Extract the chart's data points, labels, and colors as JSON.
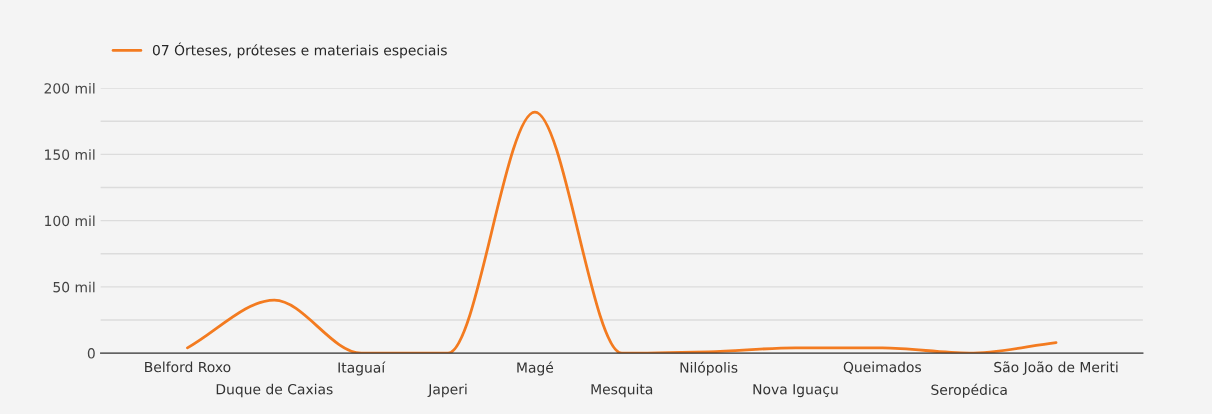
{
  "chart_data": {
    "type": "line",
    "categories": [
      "Belford Roxo",
      "Duque de Caxias",
      "Itaguaí",
      "Japeri",
      "Magé",
      "Mesquita",
      "Nilópolis",
      "Nova Iguaçu",
      "Queimados",
      "Seropédica",
      "São João de Meriti"
    ],
    "series": [
      {
        "name": "07 Órteses, próteses e materiais especiais",
        "color": "#f37b20",
        "values": [
          4,
          40,
          0,
          0,
          182,
          0,
          1,
          4,
          4,
          0,
          8
        ]
      }
    ],
    "ylim": [
      0,
      200
    ],
    "yticks": [
      0,
      {
        "value": 25,
        "label": null
      },
      {
        "value": 50,
        "label": "50 mil"
      },
      {
        "value": 75,
        "label": null
      },
      {
        "value": 100,
        "label": "100 mil"
      },
      {
        "value": 125,
        "label": null
      },
      {
        "value": 150,
        "label": "150 mil"
      },
      {
        "value": 175,
        "label": null
      },
      {
        "value": 200,
        "label": "200 mil"
      }
    ],
    "grid": "y",
    "legend": "top left",
    "marker": "none",
    "line_style": "solid"
  }
}
